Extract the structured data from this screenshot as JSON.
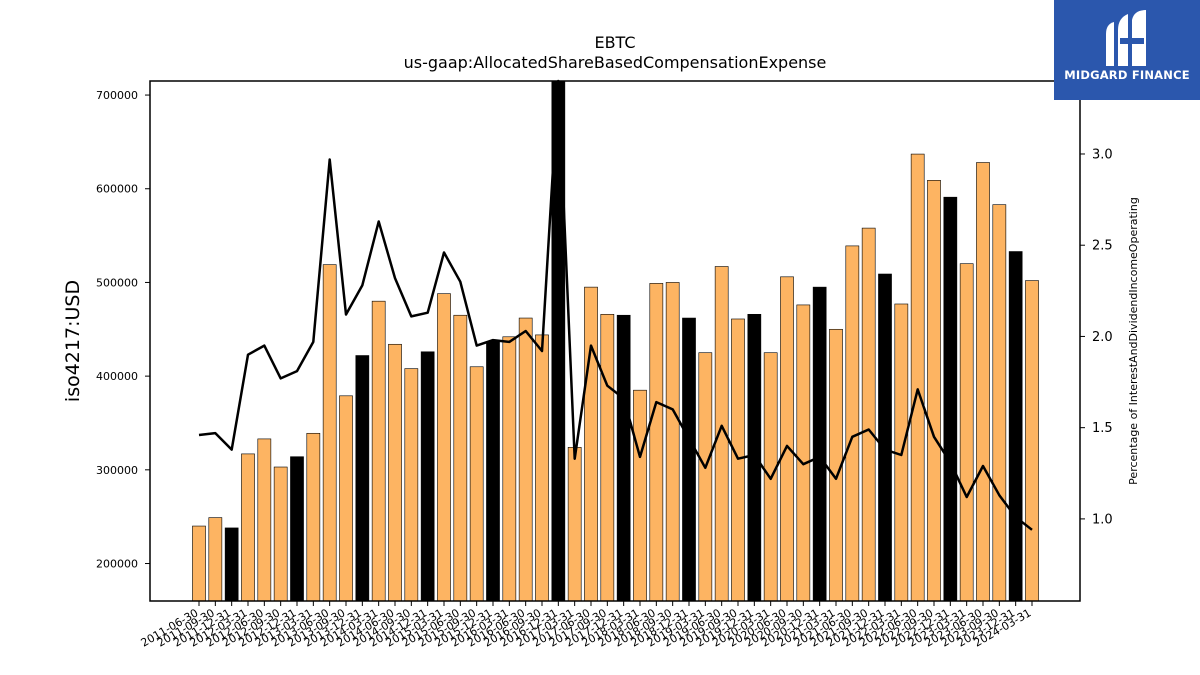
{
  "logo": {
    "text": "MIDGARD FINANCE"
  },
  "chart_data": {
    "type": "bar",
    "title": "EBTC",
    "subtitle": "us-gaap:AllocatedShareBasedCompensationExpense",
    "ylabel": "iso4217:USD",
    "y2label": "Percentage of InterestAndDividendIncomeOperating",
    "ylim": [
      160000,
      715000
    ],
    "y2lim": [
      0.55,
      3.4
    ],
    "yticks": [
      200000,
      300000,
      400000,
      500000,
      600000,
      700000
    ],
    "yticklabels": [
      "200000",
      "300000",
      "400000",
      "500000",
      "600000",
      "700000"
    ],
    "y2ticks": [
      1.0,
      1.5,
      2.0,
      2.5,
      3.0
    ],
    "y2ticklabels": [
      "1.0",
      "1.5",
      "2.0",
      "2.5",
      "3.0"
    ],
    "categories": [
      "2011-06-30",
      "2011-09-30",
      "2011-12-31",
      "2012-03-31",
      "2012-06-30",
      "2012-09-30",
      "2012-12-31",
      "2013-03-31",
      "2013-06-30",
      "2013-09-30",
      "2013-12-31",
      "2014-03-31",
      "2014-06-30",
      "2014-09-30",
      "2014-12-31",
      "2015-03-31",
      "2015-06-30",
      "2015-09-30",
      "2015-12-31",
      "2016-03-31",
      "2016-06-30",
      "2016-09-30",
      "2016-12-31",
      "2017-03-31",
      "2017-06-30",
      "2017-09-30",
      "2017-12-31",
      "2018-03-31",
      "2018-06-30",
      "2018-09-30",
      "2018-12-31",
      "2019-03-31",
      "2019-06-30",
      "2019-09-30",
      "2019-12-31",
      "2020-03-31",
      "2020-06-30",
      "2020-09-30",
      "2020-12-31",
      "2021-03-31",
      "2021-06-30",
      "2021-09-30",
      "2021-12-31",
      "2022-03-31",
      "2022-06-30",
      "2022-09-30",
      "2022-12-31",
      "2023-03-31",
      "2023-06-30",
      "2023-09-30",
      "2023-12-31",
      "2024-03-31"
    ],
    "series": [
      {
        "type": "bar",
        "axis": "left",
        "values": [
          240000,
          249000,
          238000,
          317000,
          333000,
          303000,
          314000,
          339000,
          519000,
          379000,
          422000,
          480000,
          434000,
          408000,
          426000,
          488000,
          465000,
          410000,
          437000,
          442000,
          462000,
          444000,
          717000,
          324000,
          495000,
          466000,
          465000,
          385000,
          499000,
          500000,
          462000,
          425000,
          517000,
          461000,
          466000,
          425000,
          506000,
          476000,
          495000,
          450000,
          539000,
          558000,
          509000,
          477000,
          637000,
          609000,
          591000,
          520000,
          628000,
          583000,
          533000,
          502000
        ],
        "bar_colors": [
          "#fdb462",
          "#fdb462",
          "#000000",
          "#fdb462",
          "#fdb462",
          "#fdb462",
          "#000000",
          "#fdb462",
          "#fdb462",
          "#fdb462",
          "#000000",
          "#fdb462",
          "#fdb462",
          "#fdb462",
          "#000000",
          "#fdb462",
          "#fdb462",
          "#fdb462",
          "#000000",
          "#fdb462",
          "#fdb462",
          "#fdb462",
          "#000000",
          "#fdb462",
          "#fdb462",
          "#fdb462",
          "#000000",
          "#fdb462",
          "#fdb462",
          "#fdb462",
          "#000000",
          "#fdb462",
          "#fdb462",
          "#fdb462",
          "#000000",
          "#fdb462",
          "#fdb462",
          "#fdb462",
          "#000000",
          "#fdb462",
          "#fdb462",
          "#fdb462",
          "#000000",
          "#fdb462",
          "#fdb462",
          "#fdb462",
          "#000000",
          "#fdb462",
          "#fdb462",
          "#fdb462",
          "#000000",
          "#fdb462"
        ]
      },
      {
        "type": "line",
        "axis": "right",
        "color": "#000000",
        "values": [
          1.46,
          1.47,
          1.38,
          1.9,
          1.95,
          1.77,
          1.81,
          1.97,
          2.97,
          2.12,
          2.28,
          2.63,
          2.32,
          2.11,
          2.13,
          2.46,
          2.3,
          1.95,
          1.98,
          1.97,
          2.03,
          1.92,
          3.4,
          1.33,
          1.95,
          1.73,
          1.66,
          1.34,
          1.64,
          1.6,
          1.44,
          1.28,
          1.51,
          1.33,
          1.35,
          1.22,
          1.4,
          1.3,
          1.34,
          1.22,
          1.45,
          1.49,
          1.38,
          1.35,
          1.71,
          1.45,
          1.31,
          1.12,
          1.29,
          1.13,
          1.01,
          0.94
        ]
      }
    ],
    "grid": false
  }
}
